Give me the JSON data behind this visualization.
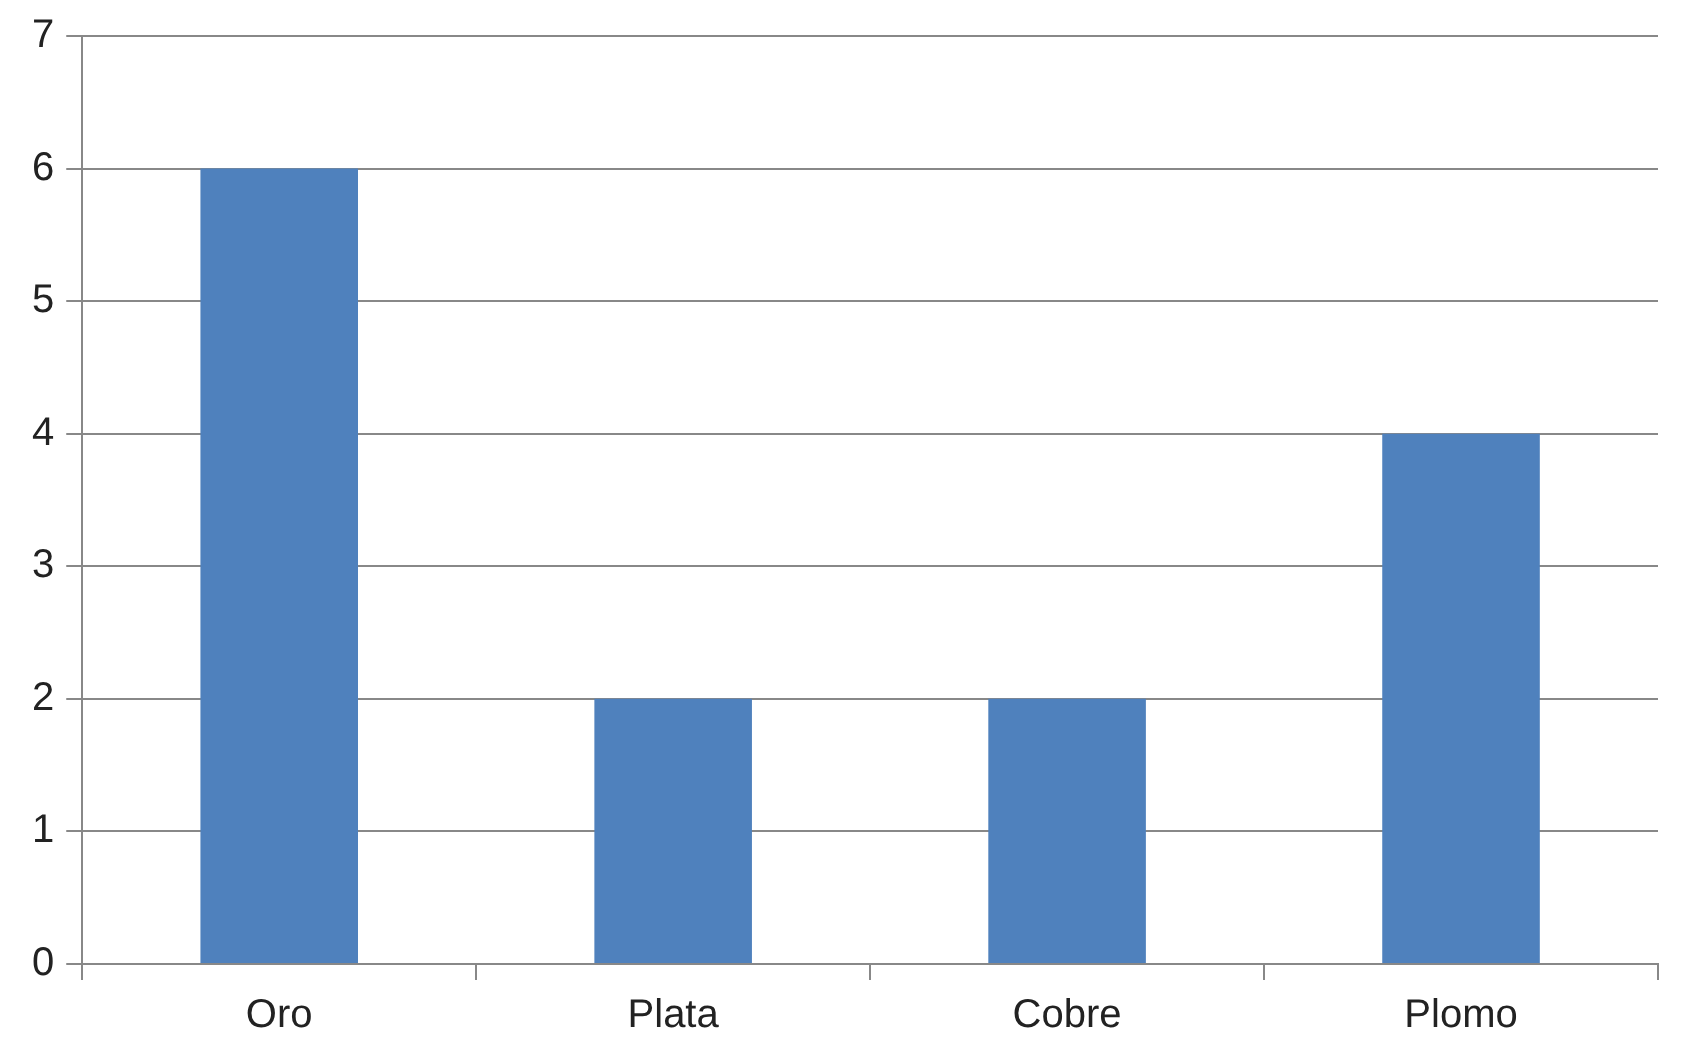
{
  "chart_data": {
    "type": "bar",
    "categories": [
      "Oro",
      "Plata",
      "Cobre",
      "Plomo"
    ],
    "values": [
      6,
      2,
      2,
      4
    ],
    "color": "#4f81bd",
    "ylim": [
      0,
      7
    ],
    "yticks": [
      0,
      1,
      2,
      3,
      4,
      5,
      6,
      7
    ],
    "grid": "y",
    "legend": false
  }
}
